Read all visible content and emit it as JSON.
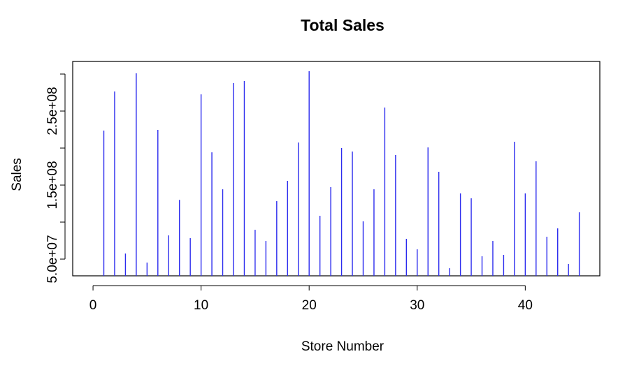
{
  "chart_data": {
    "type": "spike",
    "title": "Total Sales",
    "x_label": "Store Number",
    "y_label": "Sales",
    "x": [
      1,
      2,
      3,
      4,
      5,
      6,
      7,
      8,
      9,
      10,
      11,
      12,
      13,
      14,
      15,
      16,
      17,
      18,
      19,
      20,
      21,
      22,
      23,
      24,
      25,
      26,
      27,
      28,
      29,
      30,
      31,
      32,
      33,
      34,
      35,
      36,
      37,
      38,
      39,
      40,
      41,
      42,
      43,
      44,
      45
    ],
    "values": [
      223600000,
      276400000,
      57500000,
      301000000,
      45300000,
      224500000,
      82000000,
      130000000,
      78300000,
      272600000,
      194300000,
      144300000,
      287700000,
      290600000,
      89600000,
      74500000,
      128300000,
      155700000,
      207500000,
      303800000,
      108500000,
      147200000,
      200000000,
      195300000,
      101000000,
      144300000,
      254700000,
      190600000,
      77400000,
      63200000,
      200900000,
      167900000,
      37700000,
      138700000,
      132100000,
      53800000,
      74500000,
      55700000,
      208500000,
      138700000,
      182100000,
      80200000,
      91500000,
      43400000,
      113200000
    ],
    "color": "#2b2bee",
    "xlim": [
      -1.88,
      46.9
    ],
    "ylim": [
      27400000,
      317000000
    ],
    "xticks": [
      0,
      10,
      20,
      30,
      40
    ],
    "yticks": [
      {
        "value": 50000000,
        "label": "5.0e+07"
      },
      {
        "value": 100000000,
        "label": null
      },
      {
        "value": 150000000,
        "label": "1.5e+08"
      },
      {
        "value": 200000000,
        "label": null
      },
      {
        "value": 250000000,
        "label": "2.5e+08"
      },
      {
        "value": 300000000,
        "label": null
      }
    ]
  }
}
